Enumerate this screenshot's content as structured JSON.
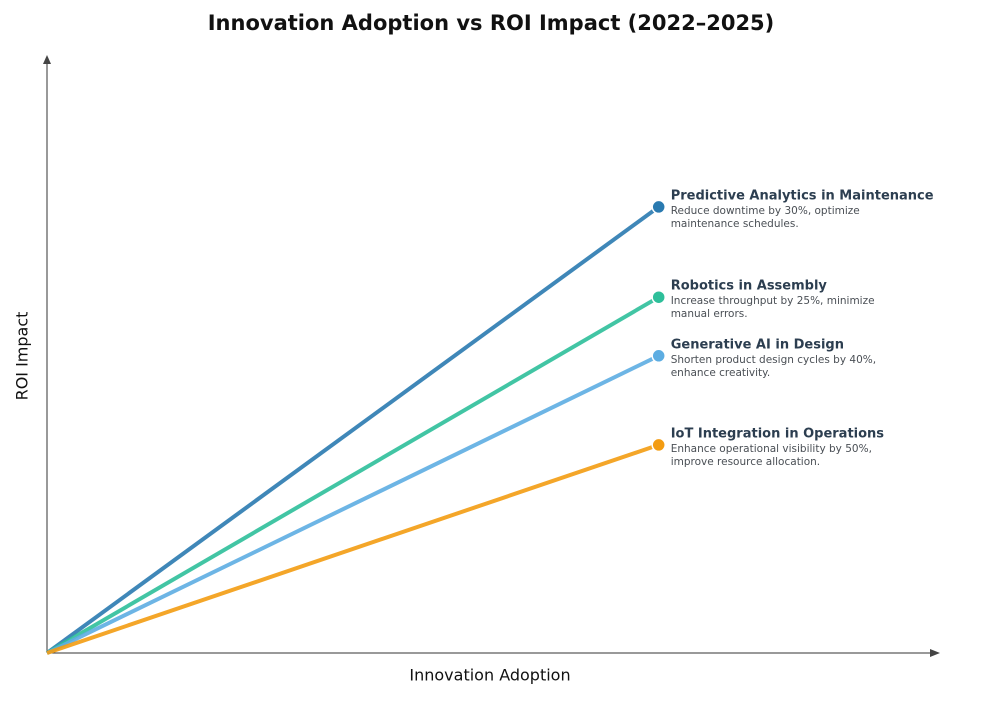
{
  "chart_data": {
    "type": "line",
    "title": "Innovation Adoption vs ROI Impact (2022–2025)",
    "x_label": "Innovation Adoption",
    "y_label": "ROI Impact",
    "xlim": [
      0,
      100
    ],
    "ylim": [
      0,
      100
    ],
    "x": [
      0,
      68.5
    ],
    "series": [
      {
        "name": "Predictive Analytics in Maintenance",
        "description": "Reduce downtime by 30%, optimize maintenance schedules.",
        "color": "#2a7ab0",
        "values": [
          0,
          74.6
        ]
      },
      {
        "name": "Robotics in Assembly",
        "description": "Increase throughput by 25%, minimize manual errors.",
        "color": "#2ebf9a",
        "values": [
          0,
          59.5
        ]
      },
      {
        "name": "Generative AI in Design",
        "description": "Shorten product design cycles by 40%, enhance creativity.",
        "color": "#5dade2",
        "values": [
          0,
          49.7
        ]
      },
      {
        "name": "IoT Integration in Operations",
        "description": "Enhance operational visibility by 50%, improve resource allocation.",
        "color": "#f39c12",
        "values": [
          0,
          34.8
        ]
      }
    ]
  }
}
